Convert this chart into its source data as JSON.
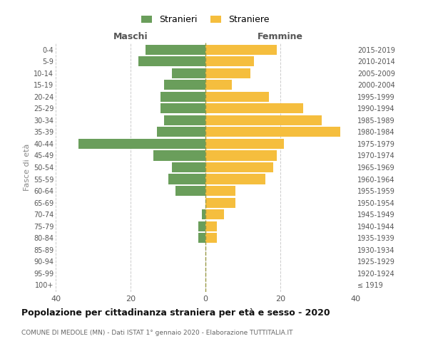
{
  "age_groups": [
    "100+",
    "95-99",
    "90-94",
    "85-89",
    "80-84",
    "75-79",
    "70-74",
    "65-69",
    "60-64",
    "55-59",
    "50-54",
    "45-49",
    "40-44",
    "35-39",
    "30-34",
    "25-29",
    "20-24",
    "15-19",
    "10-14",
    "5-9",
    "0-4"
  ],
  "birth_years": [
    "≤ 1919",
    "1920-1924",
    "1925-1929",
    "1930-1934",
    "1935-1939",
    "1940-1944",
    "1945-1949",
    "1950-1954",
    "1955-1959",
    "1960-1964",
    "1965-1969",
    "1970-1974",
    "1975-1979",
    "1980-1984",
    "1985-1989",
    "1990-1994",
    "1995-1999",
    "2000-2004",
    "2005-2009",
    "2010-2014",
    "2015-2019"
  ],
  "males": [
    0,
    0,
    0,
    0,
    2,
    2,
    1,
    0,
    8,
    10,
    9,
    14,
    34,
    13,
    11,
    12,
    12,
    11,
    9,
    18,
    16
  ],
  "females": [
    0,
    0,
    0,
    0,
    3,
    3,
    5,
    8,
    8,
    16,
    18,
    19,
    21,
    36,
    31,
    26,
    17,
    7,
    12,
    13,
    19
  ],
  "male_color": "#6a9e5b",
  "female_color": "#f5be3e",
  "title": "Popolazione per cittadinanza straniera per età e sesso - 2020",
  "subtitle": "COMUNE DI MEDOLE (MN) - Dati ISTAT 1° gennaio 2020 - Elaborazione TUTTITALIA.IT",
  "ylabel_left": "Fasce di età",
  "header_left": "Maschi",
  "header_right": "Femmine",
  "legend_male": "Stranieri",
  "legend_female": "Straniere",
  "xlim": 40,
  "bar_height": 0.85,
  "grid_color": "#cccccc",
  "zero_line_color": "#999944",
  "text_color": "#555555",
  "title_color": "#111111"
}
